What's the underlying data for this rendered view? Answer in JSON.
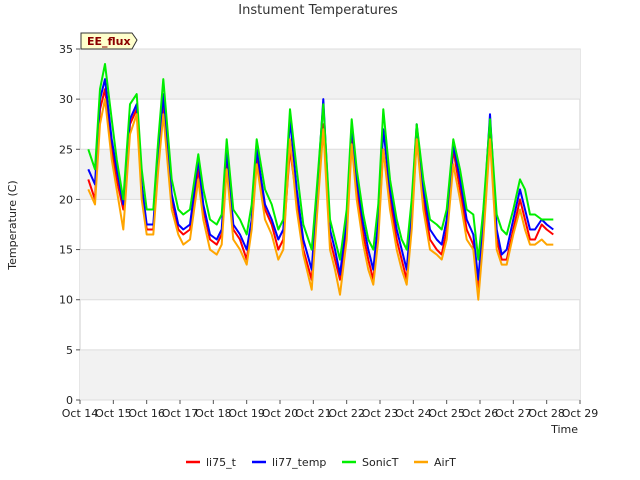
{
  "chart_data": {
    "type": "line",
    "title": "Instument Temperatures",
    "xlabel": "Time",
    "ylabel": "Temperature (C)",
    "badge": "EE_flux",
    "xlim": [
      14,
      29
    ],
    "ylim": [
      0,
      35
    ],
    "x_ticks": [
      {
        "x": 14,
        "label": "Oct 14"
      },
      {
        "x": 15,
        "label": "Oct 15"
      },
      {
        "x": 16,
        "label": "Oct 16"
      },
      {
        "x": 17,
        "label": "Oct 17"
      },
      {
        "x": 18,
        "label": "Oct 18"
      },
      {
        "x": 19,
        "label": "Oct 19"
      },
      {
        "x": 20,
        "label": "Oct 20"
      },
      {
        "x": 21,
        "label": "Oct 21"
      },
      {
        "x": 22,
        "label": "Oct 22"
      },
      {
        "x": 23,
        "label": "Oct 23"
      },
      {
        "x": 24,
        "label": "Oct 24"
      },
      {
        "x": 25,
        "label": "Oct 25"
      },
      {
        "x": 26,
        "label": "Oct 26"
      },
      {
        "x": 27,
        "label": "Oct 27"
      },
      {
        "x": 28,
        "label": "Oct 28"
      },
      {
        "x": 29,
        "label": "Oct 29"
      }
    ],
    "y_ticks": [
      0,
      5,
      10,
      15,
      20,
      25,
      30,
      35
    ],
    "grid": true,
    "legend_position": "bottom",
    "x": [
      14.25,
      14.45,
      14.6,
      14.75,
      14.95,
      15.1,
      15.3,
      15.5,
      15.7,
      15.85,
      16.0,
      16.2,
      16.35,
      16.5,
      16.75,
      16.95,
      17.1,
      17.3,
      17.55,
      17.7,
      17.9,
      18.1,
      18.25,
      18.4,
      18.6,
      18.8,
      19.0,
      19.15,
      19.3,
      19.55,
      19.75,
      19.95,
      20.1,
      20.3,
      20.5,
      20.7,
      20.95,
      21.1,
      21.3,
      21.5,
      21.65,
      21.8,
      22.0,
      22.15,
      22.3,
      22.5,
      22.65,
      22.8,
      22.95,
      23.1,
      23.3,
      23.5,
      23.65,
      23.8,
      23.95,
      24.1,
      24.3,
      24.5,
      24.7,
      24.85,
      25.0,
      25.2,
      25.4,
      25.6,
      25.8,
      25.95,
      26.1,
      26.3,
      26.5,
      26.65,
      26.8,
      27.0,
      27.2,
      27.35,
      27.5,
      27.65,
      27.85,
      28.0,
      28.2
    ],
    "series": [
      {
        "name": "li75_t",
        "color": "#ff0000",
        "values": [
          22.0,
          20.0,
          29.0,
          31.0,
          25.0,
          22.0,
          19.0,
          27.5,
          29.0,
          21.0,
          17.0,
          17.0,
          24.0,
          29.5,
          20.0,
          17.0,
          16.5,
          17.0,
          23.0,
          19.0,
          16.0,
          15.5,
          16.5,
          23.5,
          17.0,
          16.0,
          14.0,
          17.5,
          24.5,
          19.0,
          17.5,
          15.0,
          16.0,
          25.0,
          20.0,
          15.0,
          12.0,
          19.0,
          27.5,
          16.0,
          14.0,
          12.0,
          17.0,
          26.5,
          21.0,
          16.5,
          14.0,
          12.0,
          17.0,
          25.0,
          20.0,
          16.0,
          14.0,
          12.0,
          18.0,
          26.0,
          20.0,
          16.0,
          15.0,
          14.5,
          17.0,
          25.0,
          21.0,
          17.0,
          15.5,
          11.0,
          17.0,
          27.0,
          16.0,
          14.0,
          14.0,
          17.0,
          20.0,
          18.0,
          16.0,
          16.0,
          17.5,
          17.0,
          16.5
        ]
      },
      {
        "name": "li77_temp",
        "color": "#0000ff",
        "values": [
          23.0,
          21.5,
          30.0,
          32.0,
          26.0,
          23.0,
          19.5,
          28.0,
          29.5,
          21.5,
          17.5,
          17.5,
          24.5,
          30.5,
          20.5,
          17.5,
          17.0,
          17.5,
          24.0,
          19.5,
          16.5,
          16.0,
          17.0,
          25.0,
          17.5,
          16.5,
          15.0,
          18.0,
          25.0,
          19.5,
          18.0,
          16.0,
          17.0,
          28.0,
          21.0,
          16.0,
          13.0,
          20.0,
          30.0,
          17.0,
          15.0,
          12.5,
          18.0,
          27.5,
          22.0,
          17.5,
          15.0,
          13.0,
          18.0,
          27.0,
          21.0,
          17.0,
          15.0,
          13.0,
          19.0,
          27.5,
          21.0,
          17.0,
          16.0,
          15.5,
          18.0,
          25.5,
          22.0,
          18.0,
          16.5,
          12.0,
          18.0,
          28.5,
          17.0,
          14.5,
          15.0,
          18.0,
          21.0,
          19.0,
          17.0,
          17.0,
          18.0,
          17.5,
          17.0
        ]
      },
      {
        "name": "SonicT",
        "color": "#00ee00",
        "values": [
          25.0,
          23.0,
          31.0,
          33.5,
          28.0,
          24.0,
          20.0,
          29.5,
          30.5,
          23.0,
          19.0,
          19.0,
          26.0,
          32.0,
          22.0,
          19.0,
          18.5,
          19.0,
          24.5,
          21.0,
          18.0,
          17.5,
          18.5,
          26.0,
          19.0,
          18.0,
          16.5,
          19.5,
          26.0,
          21.0,
          19.5,
          17.0,
          18.0,
          29.0,
          23.0,
          17.5,
          15.0,
          21.0,
          29.5,
          18.0,
          16.0,
          14.0,
          19.0,
          28.0,
          23.0,
          18.5,
          16.0,
          15.0,
          19.5,
          29.0,
          22.0,
          18.0,
          16.0,
          15.0,
          20.0,
          27.5,
          22.0,
          18.0,
          17.5,
          17.0,
          19.0,
          26.0,
          23.0,
          19.0,
          18.5,
          14.0,
          19.0,
          28.0,
          18.5,
          17.0,
          16.5,
          19.0,
          22.0,
          21.0,
          18.5,
          18.5,
          18.0,
          18.0,
          18.0
        ]
      },
      {
        "name": "AirT",
        "color": "#ffa500",
        "values": [
          21.0,
          19.5,
          27.5,
          30.0,
          24.0,
          21.0,
          17.0,
          26.5,
          28.5,
          20.0,
          16.5,
          16.5,
          23.0,
          28.5,
          19.0,
          16.5,
          15.5,
          16.0,
          22.0,
          18.0,
          15.0,
          14.5,
          15.5,
          23.0,
          16.0,
          15.0,
          13.5,
          17.0,
          23.5,
          18.0,
          16.5,
          14.0,
          15.0,
          26.0,
          19.0,
          14.5,
          11.0,
          18.0,
          27.0,
          15.0,
          13.0,
          10.5,
          16.0,
          25.5,
          20.0,
          15.5,
          13.0,
          11.5,
          16.0,
          25.0,
          19.0,
          15.0,
          13.0,
          11.5,
          17.0,
          26.0,
          19.0,
          15.0,
          14.5,
          14.0,
          16.0,
          23.5,
          20.0,
          16.0,
          15.0,
          10.0,
          16.0,
          26.0,
          15.0,
          13.5,
          13.5,
          16.5,
          19.0,
          17.0,
          15.5,
          15.5,
          16.0,
          15.5,
          15.5
        ]
      }
    ]
  }
}
